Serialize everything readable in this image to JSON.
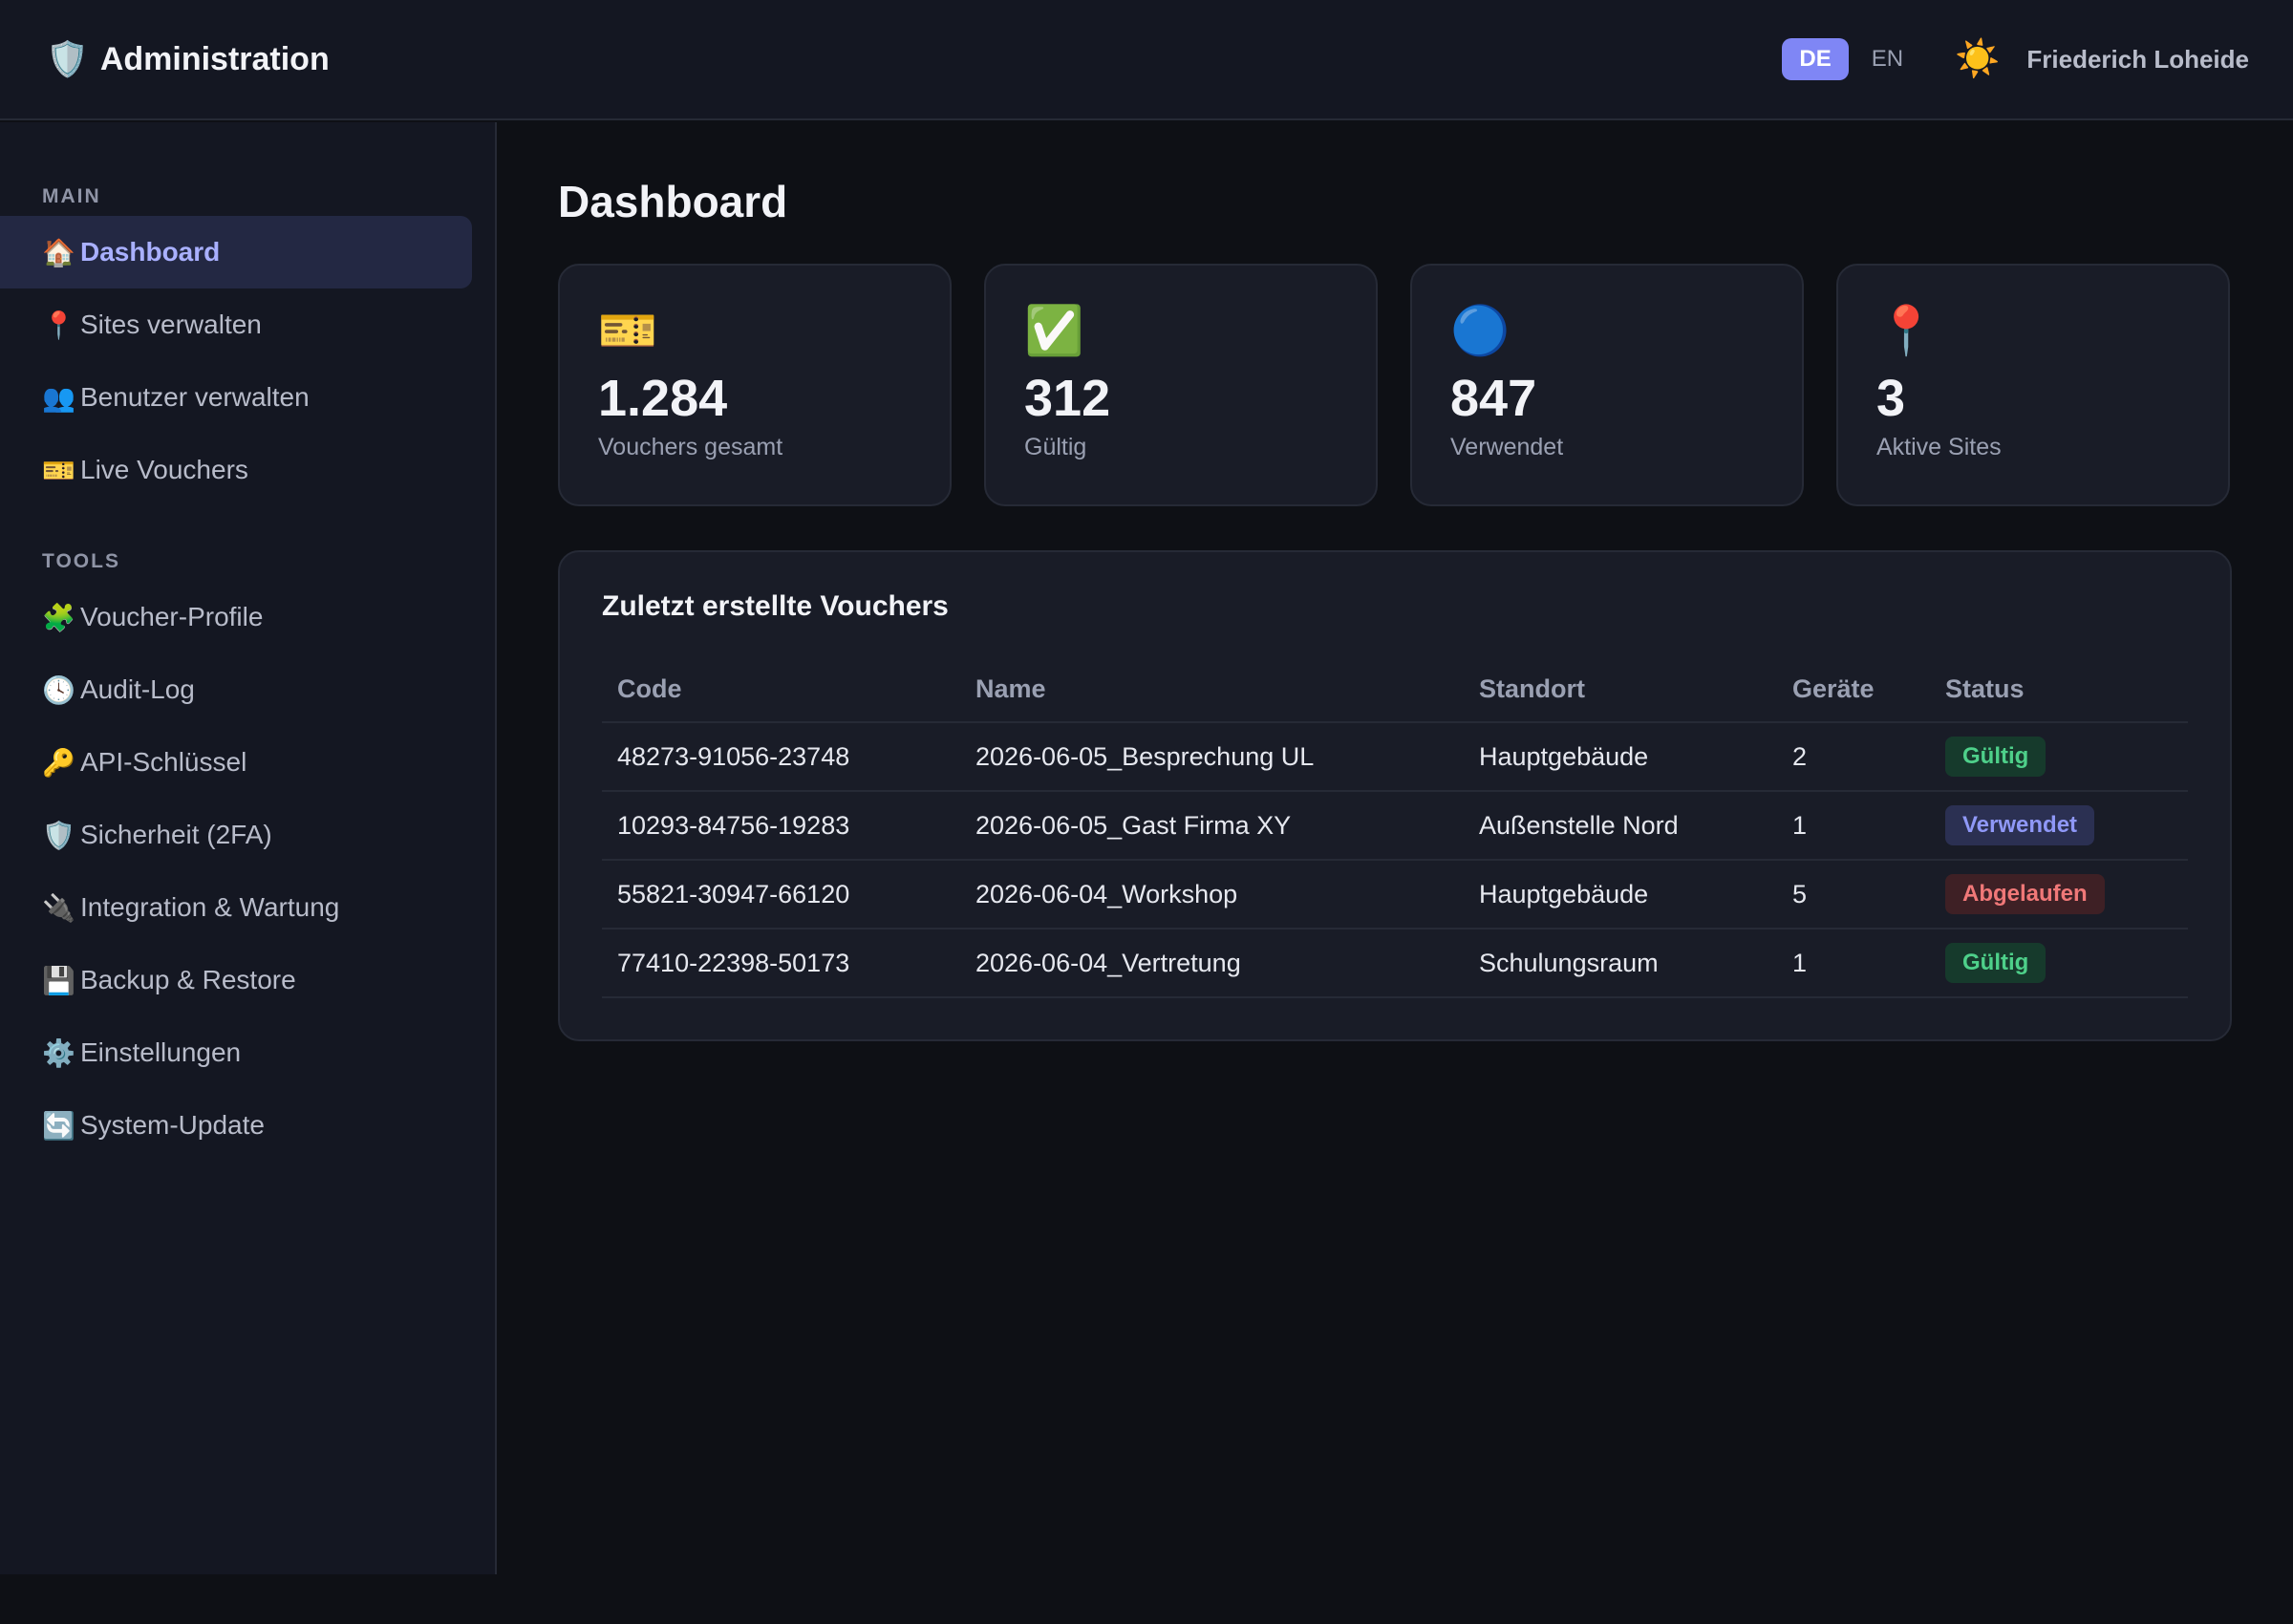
{
  "header": {
    "brand_icon": "🛡️",
    "title": "Administration",
    "languages": [
      {
        "code": "DE",
        "active": true
      },
      {
        "code": "EN",
        "active": false
      }
    ],
    "theme_icon": "☀️",
    "user_name": "Friederich Loheide"
  },
  "sidebar": {
    "sections": [
      {
        "label": "MAIN",
        "items": [
          {
            "icon": "🏠",
            "label": "Dashboard",
            "active": true
          },
          {
            "icon": "📍",
            "label": "Sites verwalten"
          },
          {
            "icon": "👥",
            "label": "Benutzer verwalten"
          },
          {
            "icon": "🎫",
            "label": "Live Vouchers"
          }
        ]
      },
      {
        "label": "TOOLS",
        "items": [
          {
            "icon": "🧩",
            "label": "Voucher-Profile"
          },
          {
            "icon": "🕓",
            "label": "Audit-Log"
          },
          {
            "icon": "🔑",
            "label": "API-Schlüssel"
          },
          {
            "icon": "🛡️",
            "label": "Sicherheit (2FA)"
          },
          {
            "icon": "🔌",
            "label": "Integration & Wartung"
          },
          {
            "icon": "💾",
            "label": "Backup & Restore"
          },
          {
            "icon": "⚙️",
            "label": "Einstellungen"
          },
          {
            "icon": "🔄",
            "label": "System-Update"
          }
        ]
      }
    ]
  },
  "main": {
    "page_title": "Dashboard",
    "stats": [
      {
        "icon": "🎫",
        "value": "1.284",
        "label": "Vouchers gesamt"
      },
      {
        "icon": "✅",
        "value": "312",
        "label": "Gültig"
      },
      {
        "icon": "🔵",
        "value": "847",
        "label": "Verwendet"
      },
      {
        "icon": "📍",
        "value": "3",
        "label": "Aktive Sites"
      }
    ],
    "recent": {
      "title": "Zuletzt erstellte Vouchers",
      "columns": [
        "Code",
        "Name",
        "Standort",
        "Geräte",
        "Status"
      ],
      "rows": [
        {
          "code": "48273-91056-23748",
          "name": "2026-06-05_Besprechung UL",
          "site": "Hauptgebäude",
          "devices": "2",
          "status": "Gültig",
          "status_type": "valid"
        },
        {
          "code": "10293-84756-19283",
          "name": "2026-06-05_Gast Firma XY",
          "site": "Außenstelle Nord",
          "devices": "1",
          "status": "Verwendet",
          "status_type": "used"
        },
        {
          "code": "55821-30947-66120",
          "name": "2026-06-04_Workshop",
          "site": "Hauptgebäude",
          "devices": "5",
          "status": "Abgelaufen",
          "status_type": "expired"
        },
        {
          "code": "77410-22398-50173",
          "name": "2026-06-04_Vertretung",
          "site": "Schulungsraum",
          "devices": "1",
          "status": "Gültig",
          "status_type": "valid"
        }
      ]
    }
  }
}
